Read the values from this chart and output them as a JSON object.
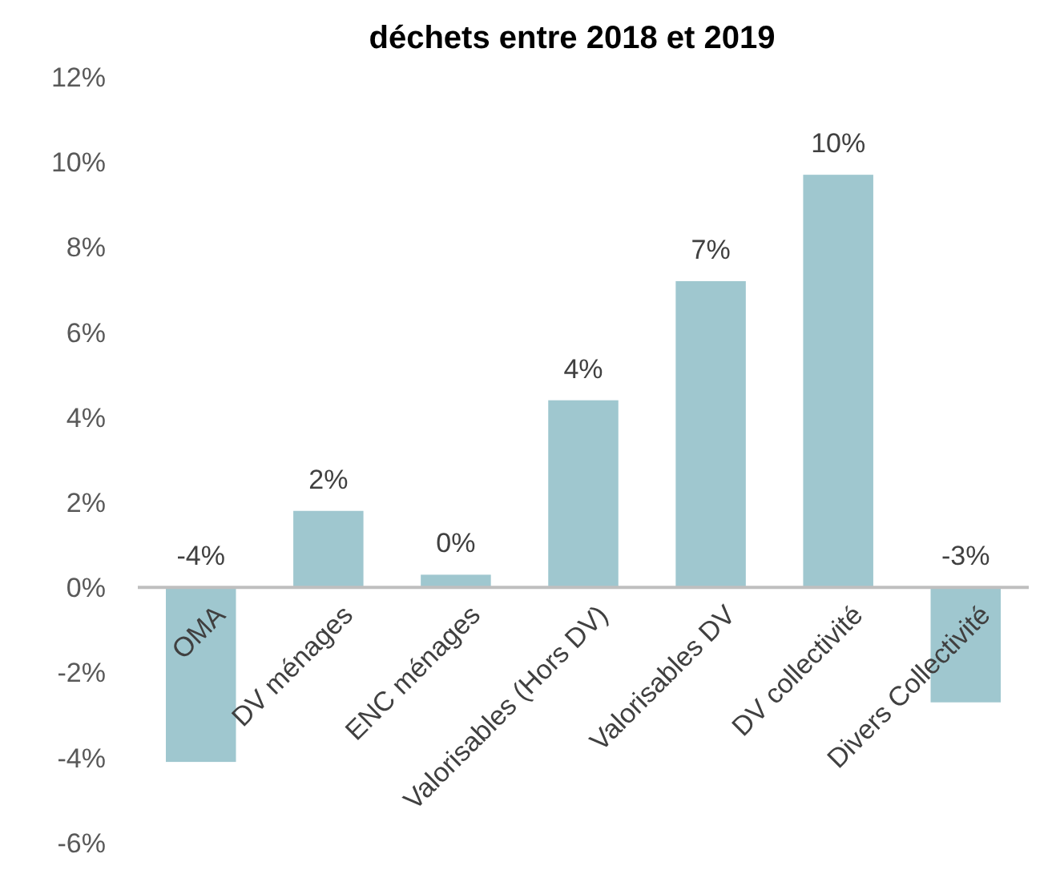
{
  "chart_data": {
    "type": "bar",
    "title": "déchets entre 2018 et 2019",
    "categories": [
      "OMA",
      "DV ménages",
      "ENC ménages",
      "Valorisables (Hors DV)",
      "Valorisables DV",
      "DV collectivité",
      "Divers Collectivité"
    ],
    "values": [
      -4.1,
      1.8,
      0.3,
      4.4,
      7.2,
      9.7,
      -2.7
    ],
    "value_labels": [
      "-4%",
      "2%",
      "0%",
      "4%",
      "7%",
      "10%",
      "-3%"
    ],
    "color": "#9fc7cf",
    "ylim": [
      -6,
      12
    ],
    "yticks": [
      {
        "value": -6,
        "label": "-6%"
      },
      {
        "value": -4,
        "label": "-4%"
      },
      {
        "value": -2,
        "label": "-2%"
      },
      {
        "value": 0,
        "label": "0%"
      },
      {
        "value": 2,
        "label": "2%"
      },
      {
        "value": 4,
        "label": "4%"
      },
      {
        "value": 6,
        "label": "6%"
      },
      {
        "value": 8,
        "label": "8%"
      },
      {
        "value": 10,
        "label": "10%"
      },
      {
        "value": 12,
        "label": "12%"
      }
    ],
    "grid": false
  }
}
